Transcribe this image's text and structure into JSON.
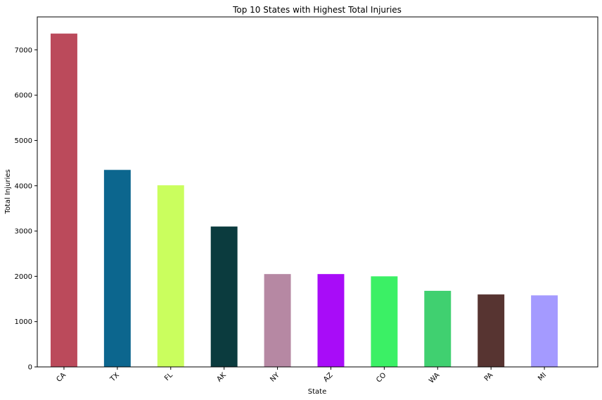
{
  "chart_data": {
    "type": "bar",
    "title": "Top 10 States with Highest Total Injuries",
    "xlabel": "State",
    "ylabel": "Total Injuries",
    "categories": [
      "CA",
      "TX",
      "FL",
      "AK",
      "NY",
      "AZ",
      "CO",
      "WA",
      "PA",
      "MI"
    ],
    "values": [
      7360,
      4350,
      4010,
      3100,
      2050,
      2050,
      2000,
      1680,
      1600,
      1580
    ],
    "colors": [
      "#bb4a5b",
      "#0c668e",
      "#cafe5e",
      "#0b3b3e",
      "#b688a3",
      "#a80cf8",
      "#3bf065",
      "#40d070",
      "#573431",
      "#a49aff"
    ],
    "yticks": [
      0,
      1000,
      2000,
      3000,
      4000,
      5000,
      6000,
      7000
    ],
    "ylim": [
      0,
      7728
    ],
    "grid": false,
    "legend": "none"
  }
}
